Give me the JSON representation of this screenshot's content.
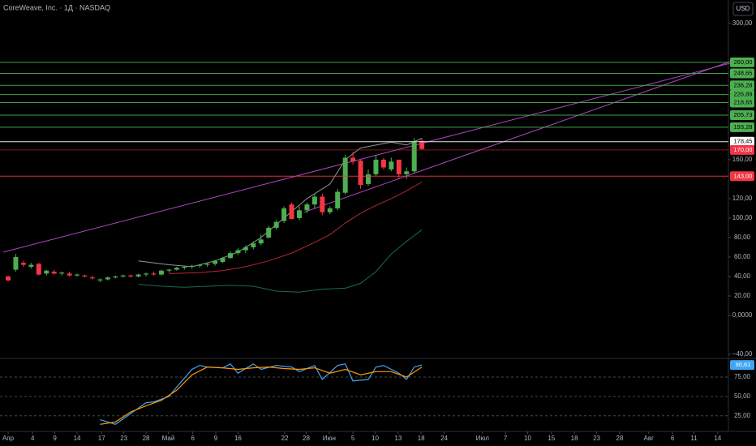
{
  "header": {
    "title": "CoreWeave, Inc. · 1Д · NASDAQ",
    "currency": "USD"
  },
  "chart_data": [
    {
      "type": "candlestick",
      "open": [
        40,
        47,
        54,
        50,
        53,
        43,
        45,
        43,
        43,
        41,
        41,
        39,
        36,
        37,
        39,
        40,
        41,
        40,
        42,
        43,
        42,
        46,
        47,
        49,
        50,
        51,
        52,
        53,
        55,
        59,
        64,
        67,
        70,
        74,
        80,
        90,
        97,
        114,
        100,
        108,
        114,
        122,
        106,
        110,
        126,
        162,
        159,
        135,
        145,
        160,
        150,
        160,
        145,
        148,
        179
      ],
      "high": [
        41,
        63,
        56,
        54,
        54,
        47,
        47,
        45,
        45,
        43,
        42,
        41,
        38,
        40,
        41,
        42,
        42,
        43,
        44,
        45,
        47,
        48,
        50,
        51,
        52,
        53,
        54,
        57,
        60,
        66,
        69,
        72,
        76,
        83,
        92,
        98,
        112,
        116,
        112,
        116,
        125,
        125,
        112,
        130,
        165,
        168,
        160,
        150,
        165,
        162,
        162,
        160,
        152,
        182,
        182
      ],
      "low": [
        35,
        45,
        50,
        48,
        41,
        41,
        42,
        41,
        40,
        40,
        39,
        37,
        34,
        36,
        38,
        39,
        39,
        39,
        40,
        41,
        41,
        44,
        46,
        47,
        48,
        49,
        50,
        51,
        54,
        58,
        62,
        64,
        68,
        72,
        79,
        88,
        95,
        99,
        98,
        105,
        110,
        103,
        104,
        108,
        124,
        155,
        130,
        133,
        143,
        150,
        148,
        140,
        140,
        146,
        170
      ],
      "close": [
        36,
        60,
        52,
        52,
        42,
        46,
        43,
        44,
        41,
        42,
        40,
        38,
        37,
        39,
        40,
        41,
        40,
        42,
        43,
        42,
        46,
        47,
        49,
        50,
        51,
        52,
        53,
        56,
        59,
        64,
        67,
        70,
        74,
        78,
        90,
        96,
        110,
        99,
        108,
        114,
        122,
        106,
        110,
        127,
        162,
        158,
        134,
        145,
        160,
        152,
        158,
        145,
        148,
        178,
        171
      ],
      "up_color": "#4caf50",
      "down_color": "#f23645",
      "xlim": [
        -1.06,
        94
      ],
      "ylim": [
        -42.5,
        324
      ],
      "yticks": [
        {
          "value": 300,
          "label": "300,00"
        },
        {
          "value": 160,
          "label": "160,00"
        },
        {
          "value": 120,
          "label": "120,00"
        },
        {
          "value": 100,
          "label": "100,00"
        },
        {
          "value": 80,
          "label": "80,00"
        },
        {
          "value": 60,
          "label": "60,00"
        },
        {
          "value": 40,
          "label": "40,00"
        },
        {
          "value": 20,
          "label": "20,00"
        },
        {
          "value": 0,
          "label": "0,0000"
        },
        {
          "value": -40,
          "label": "−40,00"
        }
      ],
      "levels": [
        {
          "value": 260,
          "label": "260,00",
          "color": "#4caf50"
        },
        {
          "value": 248.65,
          "label": "248,65",
          "color": "#4caf50"
        },
        {
          "value": 236.28,
          "label": "236,28",
          "color": "#4caf50"
        },
        {
          "value": 226.89,
          "label": "226,89",
          "color": "#4caf50"
        },
        {
          "value": 218.65,
          "label": "218,65",
          "color": "#4caf50"
        },
        {
          "value": 205.73,
          "label": "205,73",
          "color": "#4caf50"
        },
        {
          "value": 193.28,
          "label": "193,28",
          "color": "#4caf50"
        },
        {
          "value": 178.45,
          "label": "178,45",
          "color": "#ffffff"
        },
        {
          "value": 170,
          "label": "170,00",
          "color": "#f23645"
        },
        {
          "value": 143,
          "label": "143,00",
          "color": "#f23645"
        }
      ],
      "trendlines": [
        {
          "x": [
            -0.6,
            94.7
          ],
          "values": [
            65,
            260
          ],
          "color": "#ab47bc"
        },
        {
          "x": [
            38.6,
            94.7
          ],
          "values": [
            106,
            262
          ],
          "color": "#ab47bc"
        }
      ],
      "indicators": [
        {
          "x": [
            21,
            25,
            28,
            31,
            34,
            37,
            40,
            42,
            44,
            46,
            48,
            50,
            52,
            54
          ],
          "values": [
            43,
            44,
            46,
            50,
            56,
            64,
            75,
            83,
            95,
            105,
            113,
            120,
            128,
            137
          ],
          "color": "#b22833"
        },
        {
          "x": [
            17,
            20,
            23,
            26,
            29,
            32,
            35,
            38,
            41,
            44,
            46,
            48,
            50,
            52,
            54
          ],
          "values": [
            32,
            30,
            29,
            30,
            31,
            30,
            25,
            24,
            27,
            28,
            33,
            45,
            63,
            76,
            88
          ],
          "color": "#1b6b4e"
        },
        {
          "x": [
            17,
            21,
            24,
            27,
            30,
            33,
            36,
            39,
            42,
            44,
            46,
            48,
            50,
            52,
            54
          ],
          "values": [
            56,
            52,
            50,
            56,
            65,
            80,
            100,
            120,
            135,
            160,
            172,
            175,
            178,
            175,
            182
          ],
          "color": "#8c9a94"
        }
      ]
    },
    {
      "type": "line",
      "xlim": [
        -1.06,
        94
      ],
      "ylim": [
        7,
        97
      ],
      "yticks": [
        {
          "value": 75,
          "label": "75,00"
        },
        {
          "value": 50,
          "label": "50,00"
        },
        {
          "value": 25,
          "label": "25,00"
        }
      ],
      "xticks": [
        {
          "value": 0,
          "label": "Апр"
        },
        {
          "value": 3.2,
          "label": "4"
        },
        {
          "value": 6.1,
          "label": "9"
        },
        {
          "value": 9,
          "label": "14"
        },
        {
          "value": 12.2,
          "label": "17"
        },
        {
          "value": 15.1,
          "label": "23"
        },
        {
          "value": 18,
          "label": "28"
        },
        {
          "value": 20.9,
          "label": "Май"
        },
        {
          "value": 24.1,
          "label": "6"
        },
        {
          "value": 27.1,
          "label": "9"
        },
        {
          "value": 30,
          "label": "16"
        },
        {
          "value": 36.1,
          "label": "22"
        },
        {
          "value": 38.9,
          "label": "28"
        },
        {
          "value": 41.9,
          "label": "Июн"
        },
        {
          "value": 45,
          "label": "5"
        },
        {
          "value": 47.9,
          "label": "10"
        },
        {
          "value": 50.9,
          "label": "13"
        },
        {
          "value": 53.9,
          "label": "18"
        },
        {
          "value": 56.9,
          "label": "24"
        },
        {
          "value": 61.9,
          "label": "Июл"
        },
        {
          "value": 64.9,
          "label": "7"
        },
        {
          "value": 67.8,
          "label": "10"
        },
        {
          "value": 70.9,
          "label": "15"
        },
        {
          "value": 73.9,
          "label": "18"
        },
        {
          "value": 76.8,
          "label": "23"
        },
        {
          "value": 79.8,
          "label": "28"
        },
        {
          "value": 83.6,
          "label": "Авг"
        },
        {
          "value": 86.7,
          "label": "6"
        },
        {
          "value": 89.5,
          "label": "11"
        },
        {
          "value": 92.6,
          "label": "14"
        }
      ],
      "series": [
        {
          "x": [
            12,
            14,
            16,
            18,
            19,
            21,
            22,
            24,
            25,
            26,
            28,
            29,
            30,
            32,
            33,
            35,
            37,
            38,
            40,
            41,
            43,
            44,
            45,
            47,
            48,
            49,
            51,
            52,
            53,
            54
          ],
          "values": [
            20,
            14,
            28,
            42,
            43,
            50,
            62,
            85,
            90,
            88,
            87,
            92,
            80,
            92,
            85,
            90,
            88,
            82,
            90,
            72,
            90,
            92,
            70,
            72,
            88,
            90,
            80,
            72,
            88,
            90.61
          ],
          "color": "#42a5f5",
          "last_label": "90,61"
        },
        {
          "x": [
            12,
            14,
            16,
            18,
            20,
            22,
            24,
            26,
            28,
            30,
            32,
            34,
            36,
            38,
            40,
            42,
            44,
            46,
            48,
            50,
            52,
            54
          ],
          "values": [
            14,
            17,
            30,
            38,
            45,
            58,
            78,
            88,
            87,
            85,
            87,
            88,
            86,
            85,
            87,
            80,
            85,
            78,
            82,
            82,
            75,
            88
          ],
          "color": "#ff9800"
        }
      ]
    }
  ]
}
